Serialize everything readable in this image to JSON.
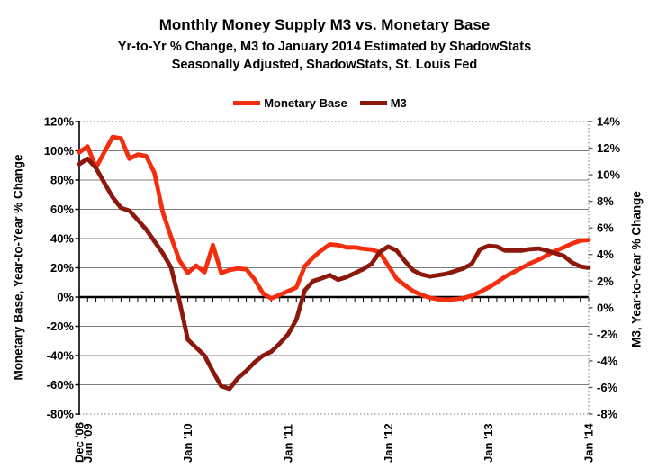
{
  "header": {
    "title": "Monthly Money Supply M3 vs. Monetary Base",
    "subtitle1": "Yr-to-Yr % Change, M3 to January 2014 Estimated by ShadowStats",
    "subtitle2": "Seasonally Adjusted, ShadowStats, St. Louis Fed"
  },
  "legend": {
    "items": [
      {
        "label": "Monetary Base",
        "color": "#f42d0e"
      },
      {
        "label": "M3",
        "color": "#8c180c"
      }
    ]
  },
  "axes": {
    "left": {
      "title": "Monetary Base, Year-to-Year % Change",
      "tick_labels": [
        "120%",
        "100%",
        "80%",
        "60%",
        "40%",
        "20%",
        "0%",
        "-20%",
        "-40%",
        "-60%",
        "-80%"
      ]
    },
    "right": {
      "title": "M3, Year-to-Year % Change",
      "tick_labels": [
        "14%",
        "12%",
        "10%",
        "8%",
        "6%",
        "4%",
        "2%",
        "0%",
        "-2%",
        "-4%",
        "-6%",
        "-8%"
      ]
    },
    "x": {
      "labeled_ticks": [
        {
          "index": 0,
          "label": "Dec '08"
        },
        {
          "index": 1,
          "label": "Jan '09"
        },
        {
          "index": 13,
          "label": "Jan '10"
        },
        {
          "index": 25,
          "label": "Jan '11"
        },
        {
          "index": 37,
          "label": "Jan '12"
        },
        {
          "index": 49,
          "label": "Jan '13"
        },
        {
          "index": 61,
          "label": "Jan '14"
        }
      ]
    }
  },
  "chart_data": {
    "type": "line",
    "title": "Monthly Money Supply M3 vs. Monetary Base",
    "subtitle": "Yr-to-Yr % Change, M3 to January 2014 Estimated by ShadowStats; Seasonally Adjusted, ShadowStats, St. Louis Fed",
    "grid": {
      "horizontal": true,
      "vertical": false,
      "zero_line": "left axis 0%, heavy black with monthly tick marks"
    },
    "legend_position": "top-center",
    "left_axis": {
      "label": "Monetary Base, Year-to-Year % Change",
      "min": -80,
      "max": 120,
      "tick_step": 20,
      "unit": "%"
    },
    "right_axis": {
      "label": "M3, Year-to-Year % Change",
      "min": -8,
      "max": 14,
      "tick_step": 2,
      "unit": "%"
    },
    "x_categories": [
      "Dec '08",
      "Jan '09",
      "Feb '09",
      "Mar '09",
      "Apr '09",
      "May '09",
      "Jun '09",
      "Jul '09",
      "Aug '09",
      "Sep '09",
      "Oct '09",
      "Nov '09",
      "Dec '09",
      "Jan '10",
      "Feb '10",
      "Mar '10",
      "Apr '10",
      "May '10",
      "Jun '10",
      "Jul '10",
      "Aug '10",
      "Sep '10",
      "Oct '10",
      "Nov '10",
      "Dec '10",
      "Jan '11",
      "Feb '11",
      "Mar '11",
      "Apr '11",
      "May '11",
      "Jun '11",
      "Jul '11",
      "Aug '11",
      "Sep '11",
      "Oct '11",
      "Nov '11",
      "Dec '11",
      "Jan '12",
      "Feb '12",
      "Mar '12",
      "Apr '12",
      "May '12",
      "Jun '12",
      "Jul '12",
      "Aug '12",
      "Sep '12",
      "Oct '12",
      "Nov '12",
      "Dec '12",
      "Jan '13",
      "Feb '13",
      "Mar '13",
      "Apr '13",
      "May '13",
      "Jun '13",
      "Jul '13",
      "Aug '13",
      "Sep '13",
      "Oct '13",
      "Nov '13",
      "Dec '13",
      "Jan '14"
    ],
    "series": [
      {
        "name": "Monetary Base",
        "axis": "left",
        "unit": "% year-over-year",
        "color": "#f42d0e",
        "values": [
          99,
          103,
          88.5,
          99,
          109.5,
          108.5,
          94.5,
          97.5,
          96.5,
          85,
          58,
          41,
          25,
          16.5,
          21.5,
          17,
          35.5,
          16.5,
          18.5,
          19.5,
          19,
          12,
          2.5,
          -1,
          1.5,
          4,
          6.5,
          21,
          27,
          32,
          36,
          35.5,
          34,
          34,
          33,
          32.5,
          30.5,
          21.5,
          12.5,
          8,
          4,
          1.5,
          -0.5,
          -1.5,
          -1.8,
          -1.5,
          -0.8,
          1,
          3.5,
          6.5,
          10,
          14,
          17,
          20,
          23,
          25.5,
          28.5,
          31.5,
          34,
          36.5,
          38.5,
          39
        ]
      },
      {
        "name": "M3",
        "axis": "right",
        "unit": "% year-over-year",
        "color": "#8c180c",
        "values": [
          10.8,
          11.2,
          10.5,
          9.4,
          8.3,
          7.5,
          7.3,
          6.6,
          5.9,
          5.0,
          4.1,
          3.0,
          0.5,
          -2.4,
          -3.0,
          -3.6,
          -4.8,
          -5.9,
          -6.1,
          -5.3,
          -4.75,
          -4.1,
          -3.6,
          -3.3,
          -2.7,
          -2.0,
          -0.9,
          1.3,
          2.0,
          2.2,
          2.45,
          2.1,
          2.3,
          2.6,
          2.9,
          3.3,
          4.2,
          4.6,
          4.3,
          3.5,
          2.8,
          2.5,
          2.35,
          2.45,
          2.55,
          2.75,
          2.95,
          3.3,
          4.4,
          4.65,
          4.6,
          4.3,
          4.3,
          4.3,
          4.4,
          4.45,
          4.3,
          4.1,
          3.9,
          3.4,
          3.1,
          3.0
        ]
      }
    ]
  }
}
